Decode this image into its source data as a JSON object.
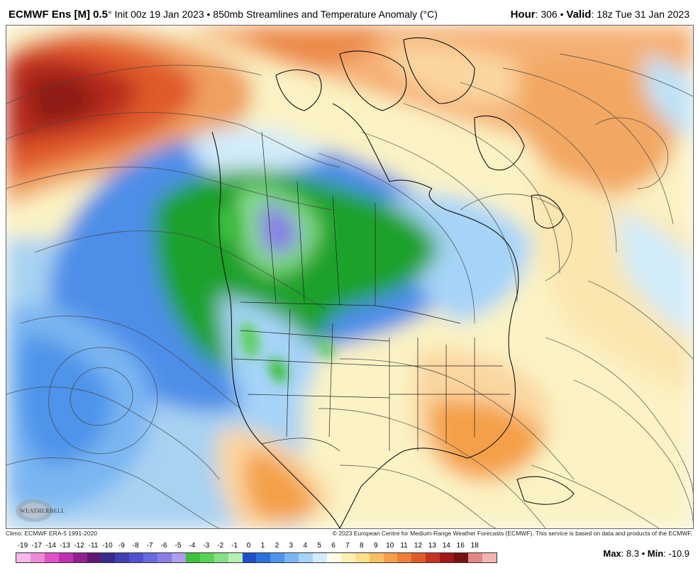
{
  "header": {
    "model": "ECMWF Ens [M] 0.5",
    "degree": "°",
    "description": " Init 00z 19 Jan 2023 • 850mb Streamlines and Temperature Anomaly (°C)",
    "hour_label": "Hour",
    "hour_value": ": 306 • ",
    "valid_label": "Valid",
    "valid_value": ": 18z Tue 31 Jan 2023"
  },
  "footer": {
    "climo": "Climo: ECMWF ERA-5 1991-2020",
    "copyright": "© 2023 European Centre for Medium-Range Weather Forecasts (ECMWF). This service is based on data and products of the ECMWF."
  },
  "logo_text": "WEATHERBELL",
  "colorbar": {
    "labels": [
      "-19",
      "-17",
      "-14",
      "-13",
      "-12",
      "-11",
      "-10",
      "-9",
      "-8",
      "-7",
      "-6",
      "-5",
      "-4",
      "-3",
      "-2",
      "-1",
      "0",
      "1",
      "2",
      "3",
      "4",
      "5",
      "6",
      "7",
      "8",
      "9",
      "10",
      "11",
      "12",
      "13",
      "14",
      "16",
      "18"
    ],
    "colors": [
      "#f5b8e8",
      "#ee8ad8",
      "#e050c8",
      "#c030b0",
      "#902090",
      "#601870",
      "#3a2a8a",
      "#3f3fb0",
      "#5050d0",
      "#6a6ae0",
      "#8a7ee6",
      "#ae9eee",
      "#3ec03e",
      "#5ad25a",
      "#86e086",
      "#b6eeb6",
      "#1e50c8",
      "#2a72dc",
      "#4e94ea",
      "#7ab6f2",
      "#a6d4f8",
      "#d2ecfa",
      "#fffce8",
      "#fdf0b0",
      "#fce08a",
      "#f8c064",
      "#f4a04a",
      "#ee7e3a",
      "#e05a2a",
      "#c83220",
      "#a01818",
      "#781010",
      "#e28686",
      "#f4b4b4"
    ]
  },
  "max_label": "Max",
  "max_value": ": 8.3 • ",
  "min_label": "Min",
  "min_value": ": -10.9"
}
